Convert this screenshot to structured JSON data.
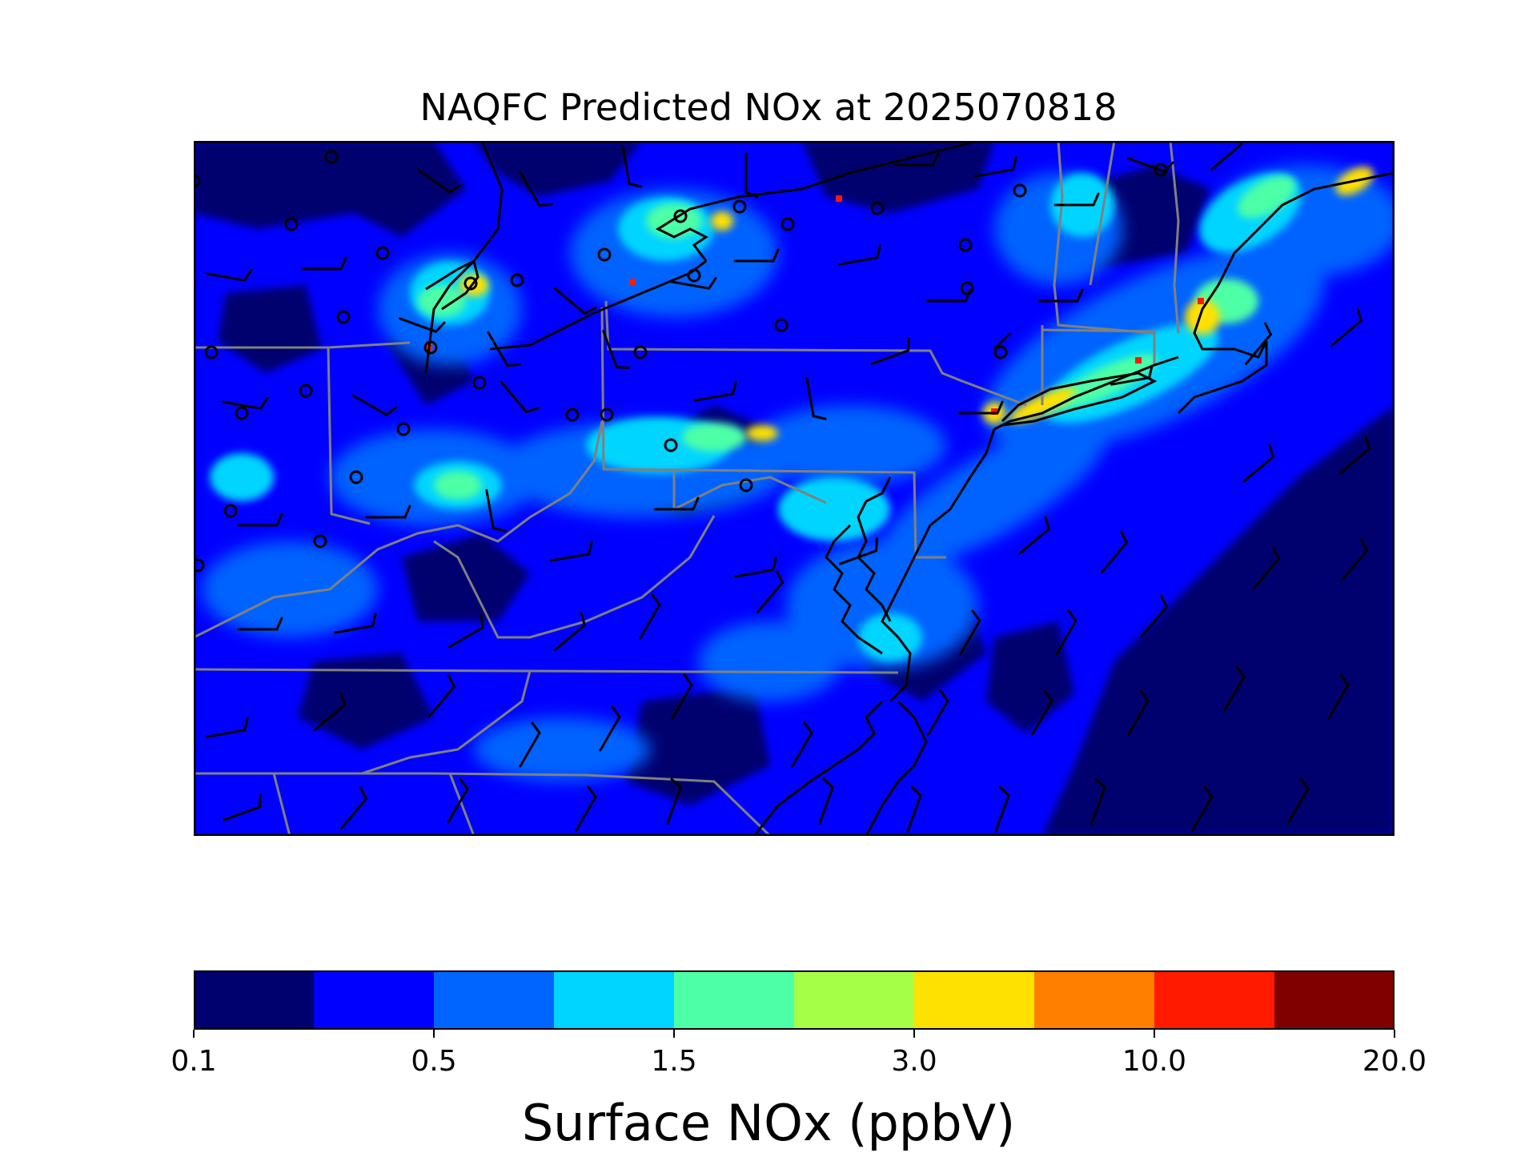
{
  "title": "NAQFC Predicted NOx at 2025070818",
  "colorbar": {
    "label": "Surface NOx (ppbV)",
    "tick_labels": [
      "0.1",
      "0.5",
      "1.5",
      "3.0",
      "10.0",
      "20.0"
    ],
    "colors": [
      "#00006e",
      "#0000ff",
      "#0064ff",
      "#00d5ff",
      "#4dffa6",
      "#a6ff47",
      "#ffe100",
      "#ff7f00",
      "#ff1a00",
      "#800000"
    ]
  },
  "map": {
    "region": "Northeastern United States",
    "overlays": [
      "state-boundaries",
      "coastlines",
      "wind-barbs",
      "monitor-site-markers"
    ]
  },
  "chart_data": {
    "type": "heatmap",
    "title": "NAQFC Predicted NOx at 2025070818",
    "colorbar_label": "Surface NOx (ppbV)",
    "colorbar_ticks": [
      0.1,
      0.5,
      1.5,
      3.0,
      10.0,
      20.0
    ],
    "color_levels": 10
  }
}
